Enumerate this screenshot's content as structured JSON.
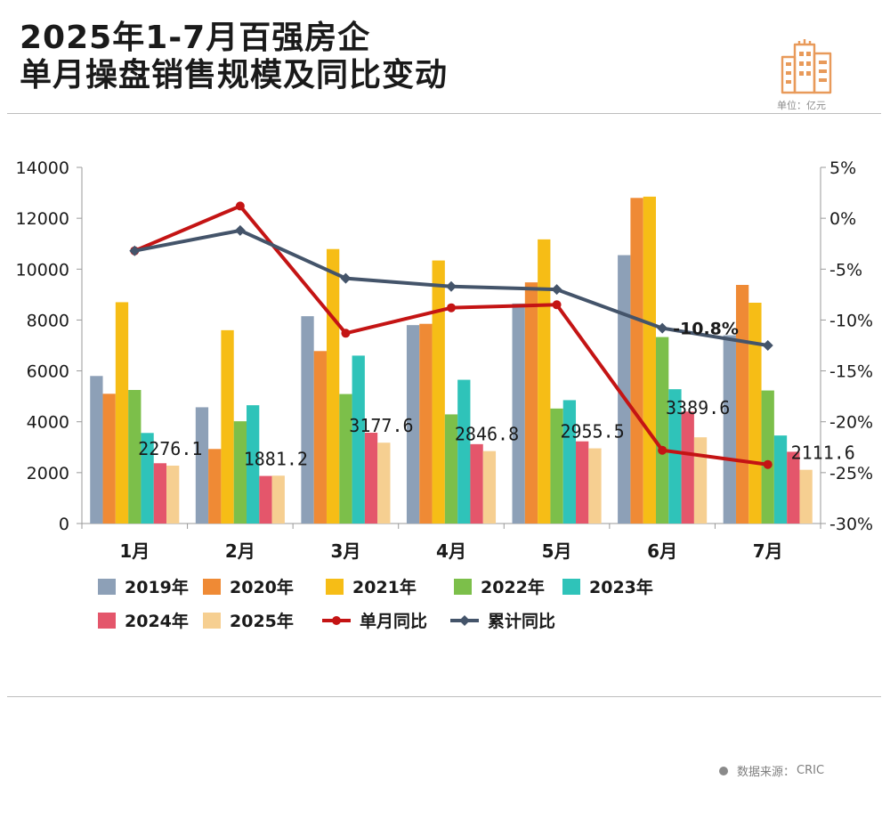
{
  "header": {
    "title_line1": "2025年1-7月百强房企",
    "title_line2": "单月操盘销售规模及同比变动",
    "unit": "单位：亿元"
  },
  "source": {
    "label": "数据来源：",
    "value": "CRIC"
  },
  "colors": {
    "2019年": "#8da0b7",
    "2020年": "#ef8a35",
    "2021年": "#f6bd16",
    "2022年": "#7cbf4a",
    "2023年": "#2fc3b9",
    "2024年": "#e4566b",
    "2025年": "#f6cf91",
    "单月同比": "#c41414",
    "累计同比": "#44546a",
    "logo": "#e89a5a"
  },
  "chart_data": {
    "type": "bar",
    "categories": [
      "1月",
      "2月",
      "3月",
      "4月",
      "5月",
      "6月",
      "7月"
    ],
    "series": [
      {
        "name": "2019年",
        "values": [
          5800,
          4570,
          8150,
          7800,
          8650,
          10550,
          7400
        ]
      },
      {
        "name": "2020年",
        "values": [
          5100,
          2930,
          6780,
          7850,
          9480,
          12800,
          9380
        ]
      },
      {
        "name": "2021年",
        "values": [
          8700,
          7600,
          10790,
          10340,
          11170,
          12850,
          8680
        ]
      },
      {
        "name": "2022年",
        "values": [
          5250,
          4020,
          5090,
          4290,
          4520,
          7330,
          5230
        ]
      },
      {
        "name": "2023年",
        "values": [
          3560,
          4650,
          6600,
          5650,
          4850,
          5280,
          3460
        ]
      },
      {
        "name": "2024年",
        "values": [
          2370,
          1870,
          3570,
          3120,
          3230,
          4400,
          2820
        ]
      },
      {
        "name": "2025年",
        "values": [
          2276.1,
          1881.2,
          3177.6,
          2846.8,
          2955.5,
          3389.6,
          2111.6
        ]
      }
    ],
    "line_series": [
      {
        "name": "单月同比",
        "type": "line",
        "axis": "right",
        "values": [
          -3.2,
          1.2,
          -11.3,
          -8.8,
          -8.5,
          -22.8,
          -24.2
        ]
      },
      {
        "name": "累计同比",
        "type": "line",
        "axis": "right",
        "values": [
          -3.2,
          -1.2,
          -5.9,
          -6.7,
          -7.0,
          -10.8,
          -12.5
        ]
      }
    ],
    "data_labels": [
      "2276.1",
      "1881.2",
      "3177.6",
      "2846.8",
      "2955.5",
      "3389.6",
      "2111.6"
    ],
    "annotation": "-10.8%",
    "left_axis": {
      "ylim": [
        0,
        14000
      ],
      "ticks": [
        "0",
        "2000",
        "4000",
        "6000",
        "8000",
        "10000",
        "12000",
        "14000"
      ]
    },
    "right_axis": {
      "ylim": [
        -30,
        5
      ],
      "ticks": [
        "-30%",
        "-25%",
        "-20%",
        "-15%",
        "-10%",
        "-5%",
        "0%",
        "5%"
      ]
    },
    "legend": {
      "placement": "bottom",
      "items": [
        "2019年",
        "2020年",
        "2021年",
        "2022年",
        "2023年",
        "2024年",
        "2025年",
        "单月同比",
        "累计同比"
      ]
    },
    "grid": false
  }
}
